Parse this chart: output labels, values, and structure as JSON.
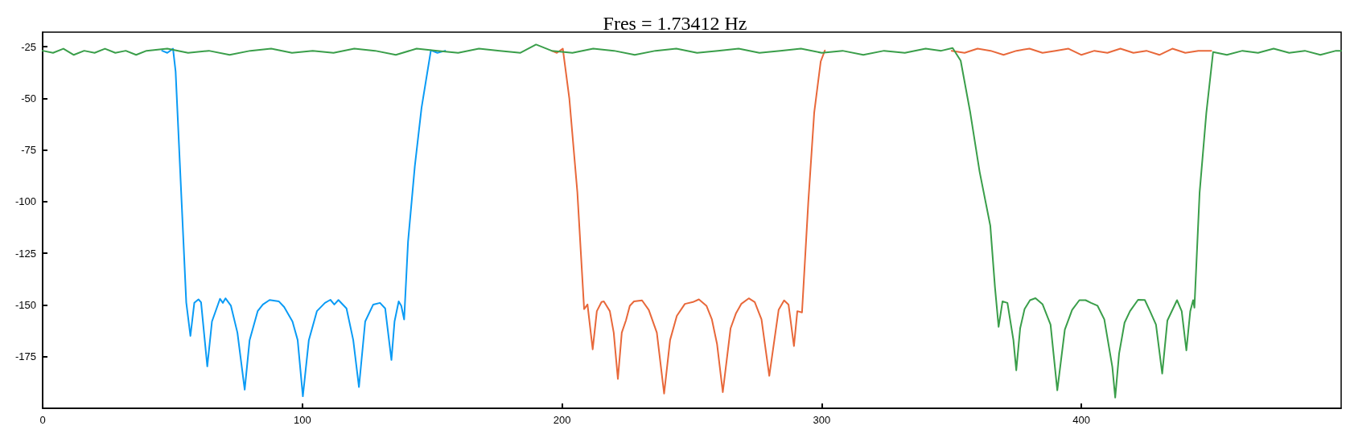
{
  "chart_data": {
    "type": "line",
    "title": "Fres = 1.73412 Hz",
    "xlim": [
      0,
      500
    ],
    "xticks": [
      0,
      100,
      200,
      300,
      400
    ],
    "ylim": [
      -200,
      -18
    ],
    "yticks": [
      -25,
      -50,
      -75,
      -100,
      -125,
      -150,
      -175
    ],
    "marker": "none",
    "line_style": "solid",
    "series": [
      {
        "color": "#0a9bf5",
        "x": [
          46,
          48,
          50.2,
          51.2,
          55.3,
          56.9,
          58.4,
          60,
          61,
          63.4,
          65.2,
          68.3,
          69.4,
          70.4,
          72.5,
          75,
          77.8,
          79.7,
          82.8,
          84.8,
          87.4,
          91,
          93,
          96.2,
          98.2,
          100.2,
          102.5,
          105.6,
          108.7,
          110.8,
          112.3,
          113.9,
          117,
          119.6,
          121.8,
          124.2,
          127.3,
          129.9,
          131.9,
          134.3,
          135.5,
          137.1,
          138.1,
          139.2,
          140.7,
          143.3,
          145.9,
          149.5,
          152,
          155
        ],
        "values": [
          -27,
          -28,
          -26,
          -37,
          -148.8,
          -165,
          -149,
          -147.3,
          -148.7,
          -179.7,
          -158,
          -147,
          -149,
          -146.8,
          -150.4,
          -163.4,
          -191,
          -167,
          -153,
          -149.8,
          -147.6,
          -148.3,
          -151,
          -158,
          -167,
          -194.2,
          -167,
          -153,
          -149,
          -147.5,
          -149.8,
          -147.6,
          -151.7,
          -167,
          -189.7,
          -158,
          -149.8,
          -149,
          -151.7,
          -176.6,
          -158,
          -148.3,
          -150.4,
          -157,
          -119.4,
          -83,
          -54.6,
          -26.8,
          -28,
          -27
        ]
      },
      {
        "color": "#e8683a",
        "x": [
          196,
          198,
          200.3,
          202.8,
          205.9,
          208.5,
          209.8,
          211.8,
          213.4,
          215.2,
          216.1,
          218.4,
          219.9,
          221.5,
          223,
          224.6,
          226.1,
          227.7,
          230.8,
          233.4,
          236.5,
          239.3,
          241.6,
          244.2,
          247.3,
          250.4,
          252.7,
          255.6,
          257.7,
          259.7,
          261.9,
          264.9,
          267,
          269,
          271.9,
          274.2,
          276.8,
          279.8,
          283.4,
          285.5,
          287.2,
          289.3,
          290.6,
          292.4,
          294.8,
          297.1,
          299.6,
          301.2,
          null,
          350,
          355,
          360,
          365,
          370,
          375,
          380,
          385,
          390,
          395,
          400,
          405,
          410,
          415,
          420,
          425,
          430,
          435,
          440,
          445,
          450
        ],
        "values": [
          -27,
          -28,
          -26,
          -50,
          -95.5,
          -152,
          -149.8,
          -171.5,
          -153,
          -148.6,
          -148.3,
          -153,
          -163.4,
          -185.8,
          -163.4,
          -157.5,
          -150.4,
          -148.3,
          -147.8,
          -152.4,
          -163.4,
          -192.9,
          -167,
          -155.3,
          -149.5,
          -148.6,
          -147.3,
          -150.4,
          -157,
          -169,
          -192.2,
          -161.3,
          -154,
          -149.5,
          -146.8,
          -148.6,
          -157,
          -184.3,
          -152.4,
          -147.8,
          -149.8,
          -169.9,
          -153,
          -153.6,
          -100.7,
          -56.9,
          -32.2,
          -26.9,
          null,
          -27,
          -28,
          -26,
          -27,
          -29,
          -27,
          -26,
          -28,
          -27,
          -26,
          -29,
          -27,
          -28,
          -26,
          -28,
          -27,
          -29,
          -26,
          -28,
          -27,
          -27
        ]
      },
      {
        "color": "#3a9e4a",
        "x": [
          0,
          4,
          8,
          12,
          16,
          20,
          24,
          28,
          32,
          36,
          40,
          48,
          56,
          64,
          72,
          80,
          88,
          96,
          104,
          112,
          120,
          128,
          136,
          144,
          152,
          160,
          168,
          176,
          184,
          190,
          196,
          204,
          212,
          220,
          228,
          236,
          244,
          252,
          260,
          268,
          276,
          284,
          292,
          300,
          308,
          316,
          324,
          332,
          340,
          346,
          350.4,
          353.5,
          357.2,
          360.8,
          364.9,
          366.7,
          368.1,
          369.6,
          371.5,
          373.8,
          374.9,
          376.4,
          378.1,
          380.2,
          382.3,
          385,
          388.1,
          390.7,
          393.6,
          396.4,
          399.2,
          401.6,
          403.7,
          406.2,
          408.8,
          411.9,
          413,
          414.5,
          416.6,
          418.7,
          421.8,
          424.4,
          426.4,
          428.7,
          431.1,
          433.1,
          436.8,
          438.6,
          440.4,
          441.9,
          443,
          443.5,
          445.5,
          448.1,
          450.7,
          456,
          462,
          468,
          474,
          480,
          486,
          492,
          498,
          500
        ],
        "values": [
          -27,
          -28,
          -26,
          -29,
          -27,
          -28,
          -26,
          -28,
          -27,
          -29,
          -27,
          -26,
          -28,
          -27,
          -29,
          -27,
          -26,
          -28,
          -27,
          -28,
          -26,
          -27,
          -29,
          -26,
          -27,
          -28,
          -26,
          -27,
          -28,
          -24,
          -27,
          -28,
          -26,
          -27,
          -29,
          -27,
          -26,
          -28,
          -27,
          -26,
          -28,
          -27,
          -26,
          -28,
          -27,
          -29,
          -27,
          -28,
          -26,
          -27,
          -25.7,
          -31.8,
          -57,
          -85.6,
          -111.6,
          -141.4,
          -160.6,
          -148.3,
          -149,
          -167,
          -181.6,
          -161.3,
          -152,
          -147.7,
          -146.7,
          -149.6,
          -159.5,
          -191.3,
          -161.9,
          -152.4,
          -147.7,
          -147.7,
          -149,
          -150.4,
          -157,
          -180,
          -194.8,
          -173.5,
          -158.6,
          -153,
          -147.5,
          -147.6,
          -153,
          -159.5,
          -183.2,
          -157.5,
          -147.7,
          -153,
          -172,
          -153,
          -147.7,
          -151.3,
          -95.6,
          -56.9,
          -27.6,
          -29,
          -27,
          -28,
          -26,
          -28,
          -27,
          -29,
          -27,
          -27
        ]
      }
    ]
  }
}
